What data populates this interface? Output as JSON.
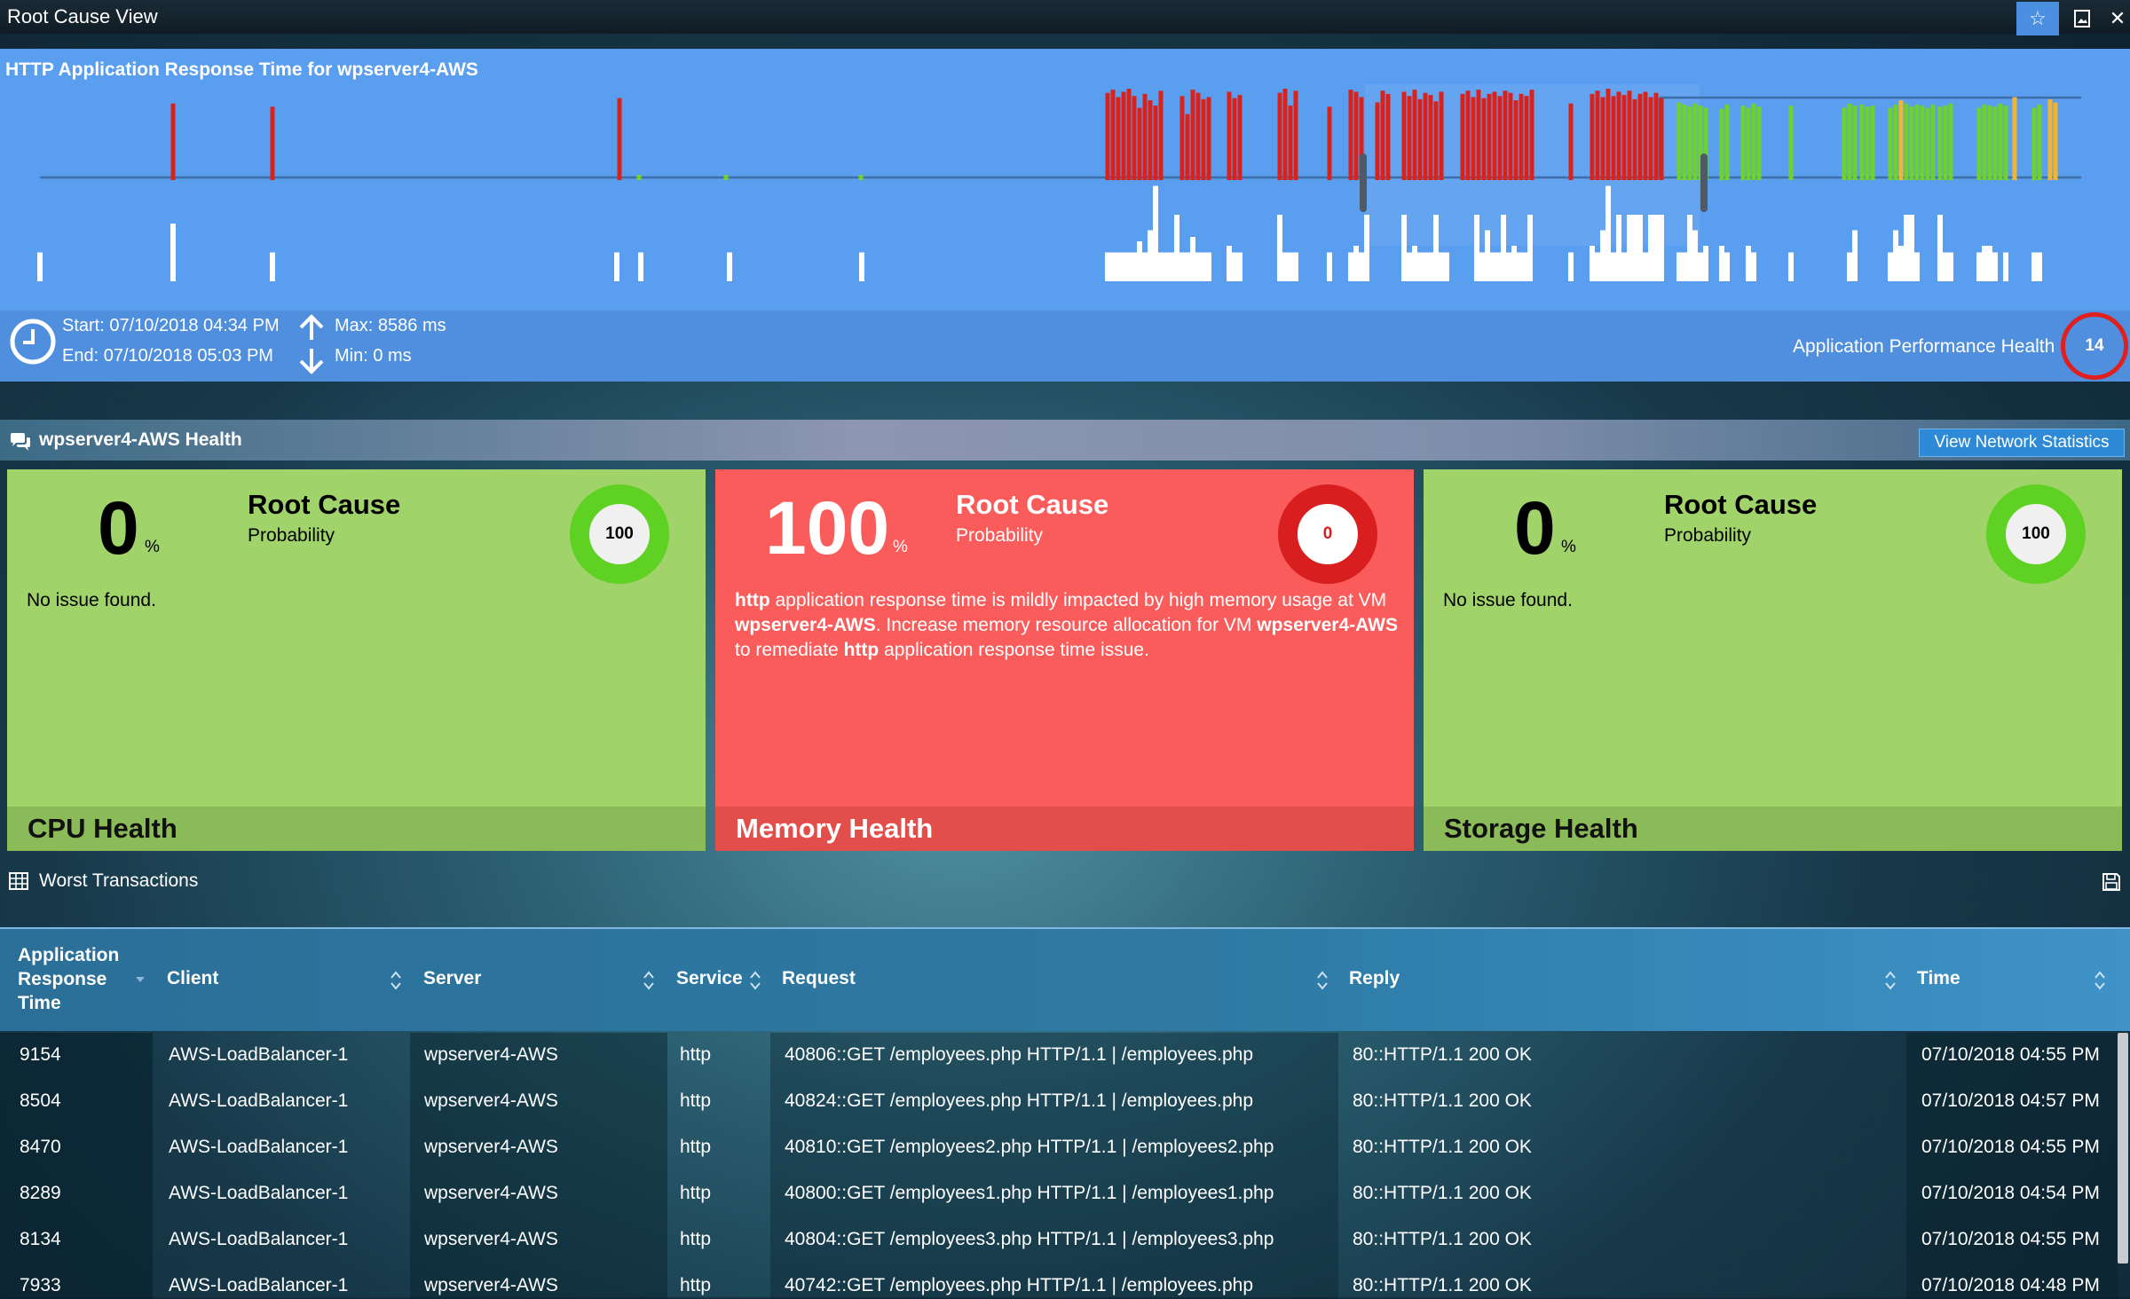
{
  "window": {
    "title": "Root Cause View",
    "buttons": [
      "star-icon",
      "image-icon",
      "close-icon"
    ]
  },
  "chart": {
    "title": "HTTP Application Response Time for wpserver4-AWS",
    "start": "Start: 07/10/2018 04:34 PM",
    "end": "End: 07/10/2018 05:03 PM",
    "max": "Max: 8586 ms",
    "min": "Min: 0 ms",
    "health_label": "Application Performance Health",
    "health_value": "14"
  },
  "chart_data": {
    "type": "bar",
    "title": "HTTP Application Response Time for wpserver4-AWS",
    "x_range": [
      "07/10/2018 04:34 PM",
      "07/10/2018 05:03 PM"
    ],
    "ylim": [
      0,
      8586
    ],
    "status_colors": {
      "critical": "#d9221c",
      "good": "#6fd12c",
      "warning": "#f2b531"
    },
    "series": [
      {
        "status": "critical",
        "x": [
          195,
          307,
          698,
          1248,
          1254,
          1260,
          1266,
          1272,
          1278,
          1284,
          1290,
          1296,
          1302,
          1308,
          1332,
          1338,
          1344,
          1350,
          1356,
          1362,
          1385,
          1391,
          1397,
          1442,
          1448,
          1454,
          1460,
          1498,
          1522,
          1528,
          1534,
          1552,
          1558,
          1564,
          1582,
          1588,
          1594,
          1600,
          1606,
          1612,
          1618,
          1624,
          1648,
          1654,
          1660,
          1666,
          1672,
          1678,
          1684,
          1690,
          1696,
          1702,
          1708,
          1714,
          1720,
          1726,
          1770,
          1794,
          1800,
          1806,
          1812,
          1818,
          1824,
          1830,
          1836,
          1842,
          1848,
          1854,
          1860,
          1866,
          1872
        ],
        "values": [
          7200,
          6900,
          7700,
          8200,
          8500,
          7800,
          8300,
          8586,
          7900,
          6800,
          8100,
          7500,
          7000,
          8400,
          7900,
          6200,
          8500,
          8200,
          7600,
          7800,
          8300,
          7700,
          8000,
          8200,
          8586,
          7000,
          8400,
          6900,
          8500,
          8300,
          7800,
          7300,
          8400,
          8100,
          8300,
          7900,
          8500,
          7600,
          8200,
          8000,
          7400,
          8300,
          8100,
          8400,
          7800,
          8500,
          7700,
          8100,
          8300,
          7900,
          8400,
          8200,
          7500,
          8100,
          7900,
          8500,
          7200,
          8100,
          8400,
          7800,
          8586,
          7900,
          8300,
          8000,
          8400,
          7600,
          8100,
          8300,
          7800,
          8200,
          7700
        ]
      },
      {
        "status": "good",
        "x": [
          720,
          818,
          970,
          1892,
          1898,
          1904,
          1910,
          1916,
          1922,
          1940,
          1946,
          1964,
          1970,
          1976,
          1982,
          2018,
          2078,
          2084,
          2090,
          2098,
          2104,
          2110,
          2130,
          2136,
          2142,
          2148,
          2154,
          2160,
          2166,
          2172,
          2178,
          2186,
          2192,
          2198,
          2230,
          2236,
          2242,
          2248,
          2254,
          2260,
          2292,
          2298
        ],
        "values": [
          6500,
          6500,
          6500,
          7300,
          7100,
          6900,
          7200,
          7000,
          6800,
          6700,
          7100,
          7000,
          6800,
          7200,
          6900,
          7000,
          6800,
          7200,
          7000,
          7100,
          6900,
          7000,
          6800,
          7100,
          7000,
          7200,
          6900,
          7100,
          7000,
          6800,
          7100,
          6900,
          7000,
          7200,
          6800,
          7100,
          7000,
          6900,
          7200,
          7000,
          6800,
          7100
        ]
      },
      {
        "status": "warning",
        "x": [
          2142,
          2270,
          2310,
          2316
        ],
        "values": [
          7500,
          7800,
          7600,
          7300
        ]
      }
    ],
    "throughput": [
      [
        45,
        1.3
      ],
      [
        195,
        2.6
      ],
      [
        307,
        1.3
      ],
      [
        695,
        1.3
      ],
      [
        722,
        1.3
      ],
      [
        822,
        1.3
      ],
      [
        971,
        1.3
      ],
      [
        1248,
        1.3
      ],
      [
        1254,
        1.3
      ],
      [
        1260,
        1.3
      ],
      [
        1266,
        1.3
      ],
      [
        1272,
        1.3
      ],
      [
        1278,
        1.3
      ],
      [
        1284,
        1.8
      ],
      [
        1290,
        1.3
      ],
      [
        1296,
        2.3
      ],
      [
        1302,
        4.3
      ],
      [
        1308,
        1.3
      ],
      [
        1314,
        1.3
      ],
      [
        1320,
        1.3
      ],
      [
        1326,
        3.0
      ],
      [
        1332,
        1.3
      ],
      [
        1338,
        1.3
      ],
      [
        1344,
        2.0
      ],
      [
        1350,
        1.3
      ],
      [
        1356,
        1.3
      ],
      [
        1362,
        1.3
      ],
      [
        1385,
        1.6
      ],
      [
        1391,
        1.3
      ],
      [
        1397,
        1.3
      ],
      [
        1442,
        3.0
      ],
      [
        1448,
        1.3
      ],
      [
        1454,
        1.3
      ],
      [
        1460,
        1.3
      ],
      [
        1498,
        1.3
      ],
      [
        1522,
        1.3
      ],
      [
        1528,
        1.6
      ],
      [
        1534,
        1.3
      ],
      [
        1540,
        3.0
      ],
      [
        1582,
        3.0
      ],
      [
        1588,
        1.3
      ],
      [
        1594,
        1.6
      ],
      [
        1600,
        1.3
      ],
      [
        1606,
        1.3
      ],
      [
        1612,
        1.3
      ],
      [
        1618,
        3.0
      ],
      [
        1624,
        1.3
      ],
      [
        1630,
        1.3
      ],
      [
        1664,
        3.0
      ],
      [
        1670,
        1.3
      ],
      [
        1676,
        2.3
      ],
      [
        1682,
        1.3
      ],
      [
        1688,
        1.3
      ],
      [
        1694,
        3.0
      ],
      [
        1700,
        1.3
      ],
      [
        1706,
        1.6
      ],
      [
        1712,
        1.3
      ],
      [
        1718,
        1.3
      ],
      [
        1724,
        3.0
      ],
      [
        1770,
        1.3
      ],
      [
        1794,
        1.6
      ],
      [
        1800,
        1.3
      ],
      [
        1806,
        2.3
      ],
      [
        1812,
        4.3
      ],
      [
        1818,
        1.3
      ],
      [
        1824,
        3.0
      ],
      [
        1830,
        1.3
      ],
      [
        1836,
        3.0
      ],
      [
        1842,
        3.0
      ],
      [
        1848,
        3.0
      ],
      [
        1854,
        1.3
      ],
      [
        1860,
        3.0
      ],
      [
        1866,
        3.0
      ],
      [
        1872,
        3.0
      ],
      [
        1892,
        1.3
      ],
      [
        1898,
        1.3
      ],
      [
        1904,
        3.0
      ],
      [
        1910,
        2.3
      ],
      [
        1916,
        1.3
      ],
      [
        1922,
        1.6
      ],
      [
        1940,
        1.6
      ],
      [
        1946,
        1.3
      ],
      [
        1970,
        1.6
      ],
      [
        1976,
        1.3
      ],
      [
        2018,
        1.3
      ],
      [
        2084,
        1.3
      ],
      [
        2090,
        2.3
      ],
      [
        2130,
        1.3
      ],
      [
        2136,
        2.3
      ],
      [
        2142,
        1.6
      ],
      [
        2148,
        3.0
      ],
      [
        2154,
        3.0
      ],
      [
        2160,
        1.3
      ],
      [
        2186,
        3.0
      ],
      [
        2192,
        1.3
      ],
      [
        2198,
        1.3
      ],
      [
        2230,
        1.3
      ],
      [
        2236,
        1.6
      ],
      [
        2242,
        1.6
      ],
      [
        2248,
        1.3
      ],
      [
        2260,
        1.3
      ],
      [
        2292,
        1.3
      ],
      [
        2298,
        1.3
      ]
    ]
  },
  "health": {
    "title": "wpserver4-AWS Health",
    "view_network_label": "View Network Statistics",
    "cards": [
      {
        "value": "0",
        "unit": "%",
        "rc_title": "Root Cause",
        "rc_sub": "Probability",
        "score": "100",
        "message": "No issue found.",
        "footer": "CPU Health",
        "status": "good"
      },
      {
        "value": "100",
        "unit": "%",
        "rc_title": "Root Cause",
        "rc_sub": "Probability",
        "score": "0",
        "message_parts": [
          "http",
          " application response time is mildly impacted by high memory usage at VM ",
          "wpserver4-AWS",
          ". Increase memory resource allocation for VM ",
          "wpserver4-AWS",
          " to remediate ",
          "http",
          " application response time issue."
        ],
        "footer": "Memory Health",
        "status": "bad"
      },
      {
        "value": "0",
        "unit": "%",
        "rc_title": "Root Cause",
        "rc_sub": "Probability",
        "score": "100",
        "message": "No issue found.",
        "footer": "Storage Health",
        "status": "good"
      }
    ]
  },
  "transactions": {
    "title": "Worst Transactions",
    "columns": [
      "Application Response Time",
      "Client",
      "Server",
      "Service",
      "Request",
      "Reply",
      "Time"
    ],
    "rows": [
      [
        "9154",
        "AWS-LoadBalancer-1",
        "wpserver4-AWS",
        "http",
        "40806::GET /employees.php HTTP/1.1 | /employees.php",
        "80::HTTP/1.1 200 OK",
        "07/10/2018 04:55 PM"
      ],
      [
        "8504",
        "AWS-LoadBalancer-1",
        "wpserver4-AWS",
        "http",
        "40824::GET /employees.php HTTP/1.1 | /employees.php",
        "80::HTTP/1.1 200 OK",
        "07/10/2018 04:57 PM"
      ],
      [
        "8470",
        "AWS-LoadBalancer-1",
        "wpserver4-AWS",
        "http",
        "40810::GET /employees2.php HTTP/1.1 | /employees2.php",
        "80::HTTP/1.1 200 OK",
        "07/10/2018 04:55 PM"
      ],
      [
        "8289",
        "AWS-LoadBalancer-1",
        "wpserver4-AWS",
        "http",
        "40800::GET /employees1.php HTTP/1.1 | /employees1.php",
        "80::HTTP/1.1 200 OK",
        "07/10/2018 04:54 PM"
      ],
      [
        "8134",
        "AWS-LoadBalancer-1",
        "wpserver4-AWS",
        "http",
        "40804::GET /employees3.php HTTP/1.1 | /employees3.php",
        "80::HTTP/1.1 200 OK",
        "07/10/2018 04:55 PM"
      ],
      [
        "7933",
        "AWS-LoadBalancer-1",
        "wpserver4-AWS",
        "http",
        "40742::GET /employees.php HTTP/1.1 | /employees.php",
        "80::HTTP/1.1 200 OK",
        "07/10/2018 04:48 PM"
      ]
    ]
  }
}
